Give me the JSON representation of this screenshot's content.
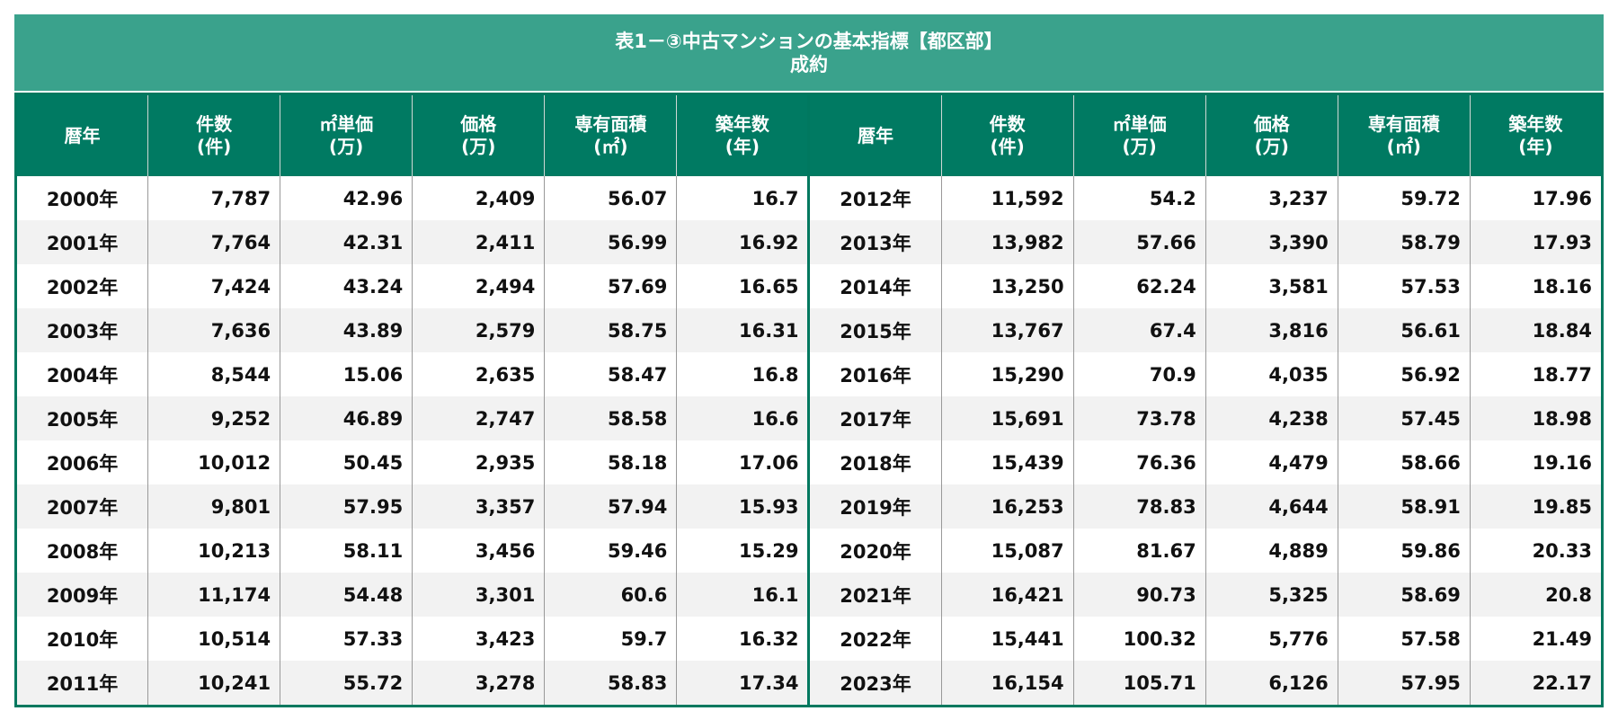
{
  "title": {
    "line1": "表1－③中古マンションの基本指標【都区部】",
    "line2": "成約"
  },
  "colors": {
    "title_bg": "#3aa28c",
    "header_bg": "#007a62",
    "border": "#00785f",
    "alt_row": "#f2f2f2"
  },
  "headers": [
    {
      "top": "暦年",
      "bottom": ""
    },
    {
      "top": "件数",
      "bottom": "(件)"
    },
    {
      "top": "㎡単価",
      "bottom": "(万)"
    },
    {
      "top": "価格",
      "bottom": "(万)"
    },
    {
      "top": "専有面積",
      "bottom": "(㎡)"
    },
    {
      "top": "築年数",
      "bottom": "(年)"
    }
  ],
  "left_rows": [
    [
      "2000年",
      "7,787",
      "42.96",
      "2,409",
      "56.07",
      "16.7"
    ],
    [
      "2001年",
      "7,764",
      "42.31",
      "2,411",
      "56.99",
      "16.92"
    ],
    [
      "2002年",
      "7,424",
      "43.24",
      "2,494",
      "57.69",
      "16.65"
    ],
    [
      "2003年",
      "7,636",
      "43.89",
      "2,579",
      "58.75",
      "16.31"
    ],
    [
      "2004年",
      "8,544",
      "15.06",
      "2,635",
      "58.47",
      "16.8"
    ],
    [
      "2005年",
      "9,252",
      "46.89",
      "2,747",
      "58.58",
      "16.6"
    ],
    [
      "2006年",
      "10,012",
      "50.45",
      "2,935",
      "58.18",
      "17.06"
    ],
    [
      "2007年",
      "9,801",
      "57.95",
      "3,357",
      "57.94",
      "15.93"
    ],
    [
      "2008年",
      "10,213",
      "58.11",
      "3,456",
      "59.46",
      "15.29"
    ],
    [
      "2009年",
      "11,174",
      "54.48",
      "3,301",
      "60.6",
      "16.1"
    ],
    [
      "2010年",
      "10,514",
      "57.33",
      "3,423",
      "59.7",
      "16.32"
    ],
    [
      "2011年",
      "10,241",
      "55.72",
      "3,278",
      "58.83",
      "17.34"
    ]
  ],
  "right_rows": [
    [
      "2012年",
      "11,592",
      "54.2",
      "3,237",
      "59.72",
      "17.96"
    ],
    [
      "2013年",
      "13,982",
      "57.66",
      "3,390",
      "58.79",
      "17.93"
    ],
    [
      "2014年",
      "13,250",
      "62.24",
      "3,581",
      "57.53",
      "18.16"
    ],
    [
      "2015年",
      "13,767",
      "67.4",
      "3,816",
      "56.61",
      "18.84"
    ],
    [
      "2016年",
      "15,290",
      "70.9",
      "4,035",
      "56.92",
      "18.77"
    ],
    [
      "2017年",
      "15,691",
      "73.78",
      "4,238",
      "57.45",
      "18.98"
    ],
    [
      "2018年",
      "15,439",
      "76.36",
      "4,479",
      "58.66",
      "19.16"
    ],
    [
      "2019年",
      "16,253",
      "78.83",
      "4,644",
      "58.91",
      "19.85"
    ],
    [
      "2020年",
      "15,087",
      "81.67",
      "4,889",
      "59.86",
      "20.33"
    ],
    [
      "2021年",
      "16,421",
      "90.73",
      "5,325",
      "58.69",
      "20.8"
    ],
    [
      "2022年",
      "15,441",
      "100.32",
      "5,776",
      "57.58",
      "21.49"
    ],
    [
      "2023年",
      "16,154",
      "105.71",
      "6,126",
      "57.95",
      "22.17"
    ]
  ]
}
